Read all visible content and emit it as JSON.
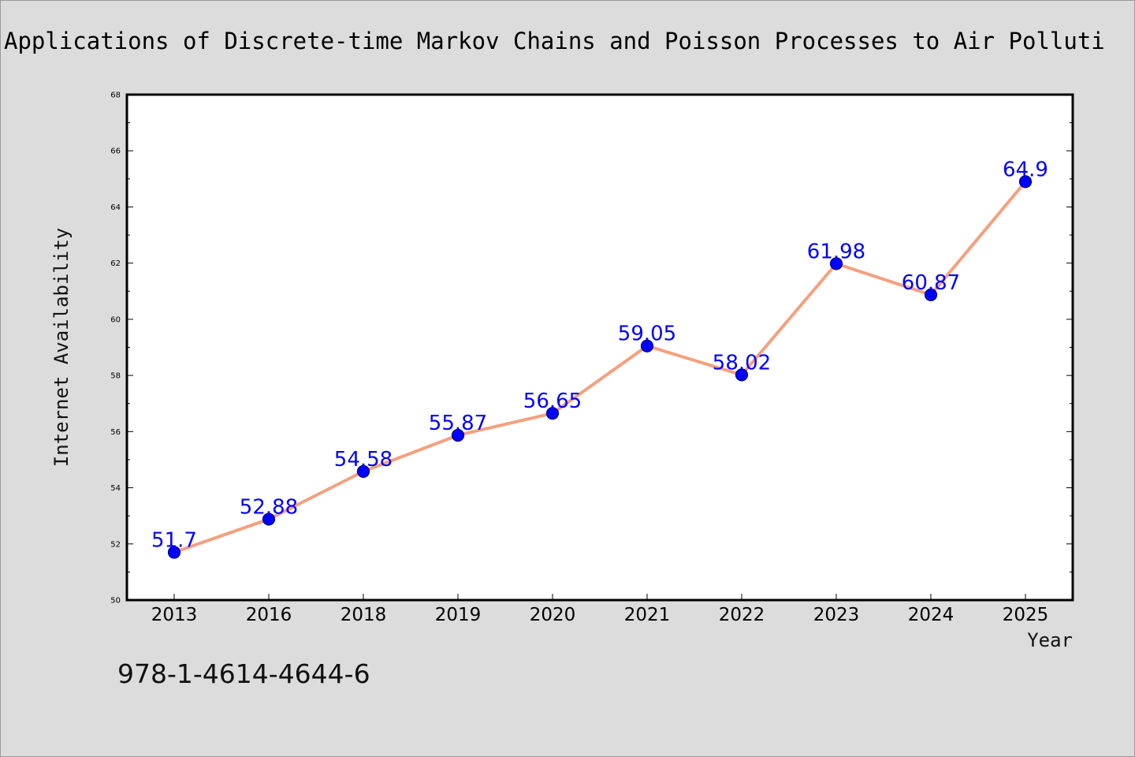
{
  "page": {
    "isbn_text": "978-1-4614-4644-6"
  },
  "chart_data": {
    "type": "line",
    "title": "Applications of Discrete-time Markov Chains and Poisson Processes to Air Polluti",
    "xlabel": "Year",
    "ylabel": "Internet Availability",
    "categories": [
      "2013",
      "2016",
      "2018",
      "2019",
      "2020",
      "2021",
      "2022",
      "2023",
      "2024",
      "2025"
    ],
    "series": [
      {
        "values": [
          51.7,
          52.88,
          54.58,
          55.87,
          56.65,
          59.05,
          58.02,
          61.98,
          60.87,
          64.9
        ],
        "labels": [
          "51.7",
          "52.88",
          "54.58",
          "55.87",
          "56.65",
          "59.05",
          "58.02",
          "61.98",
          "60.87",
          "64.9"
        ]
      }
    ],
    "ylim": [
      50,
      68
    ],
    "yticks": [
      50,
      52,
      54,
      56,
      58,
      60,
      62,
      64,
      66,
      68
    ],
    "grid": false,
    "colors": {
      "line": "#f5a07e",
      "marker": "#0000ff",
      "marker_edge": "#00007a",
      "data_label": "#0000ff",
      "plot_background": "#ffffff",
      "figure_background": "#dcdcdc"
    }
  }
}
